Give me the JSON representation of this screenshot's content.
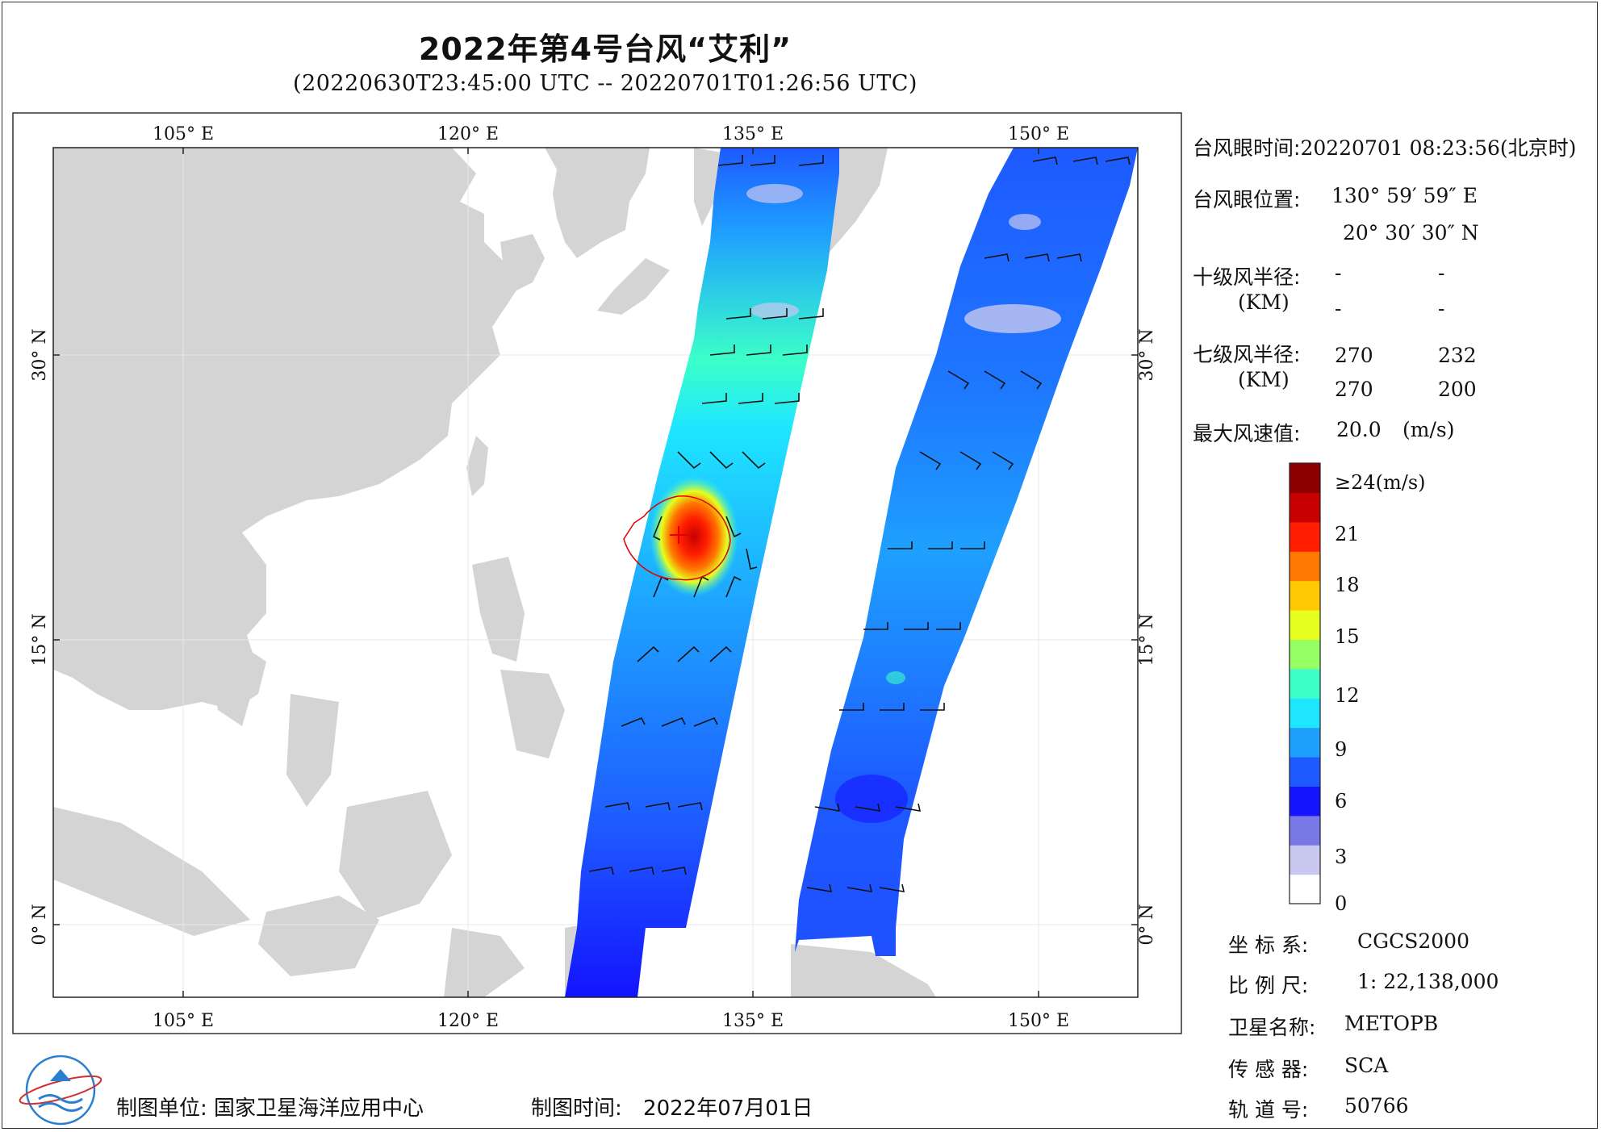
{
  "title": "2022年第4号台风“艾利”",
  "subtitle": "(20220630T23:45:00 UTC -- 20220701T01:26:56 UTC)",
  "axes": {
    "lon_labels": [
      "105° E",
      "120° E",
      "135° E",
      "150° E"
    ],
    "lat_labels": [
      "30° N",
      "15° N",
      "0° N"
    ]
  },
  "info": {
    "eye_time_label": "台风眼时间:",
    "eye_time_value": "20220701 08:23:56(北京时)",
    "eye_pos_label": "台风眼位置:",
    "eye_lon": "130° 59′ 59″ E",
    "eye_lat": "20° 30′ 30″ N",
    "r10_label": "十级风半径:",
    "r10_unit": "(KM)",
    "r10_values": [
      "-",
      "-",
      "-",
      "-"
    ],
    "r7_label": "七级风半径:",
    "r7_unit": "(KM)",
    "r7_values": [
      "270",
      "232",
      "270",
      "200"
    ],
    "max_wind_label": "最大风速值:",
    "max_wind_value": "20.0",
    "max_wind_unit": "(m/s)"
  },
  "colorbar": {
    "ticks": [
      "≥24(m/s)",
      "21",
      "18",
      "15",
      "12",
      "9",
      "6",
      "3",
      "0"
    ],
    "colors": [
      "#ffffff",
      "#c8c8f0",
      "#7878e6",
      "#1414ff",
      "#1e5aff",
      "#1ea0ff",
      "#1ee6ff",
      "#3cffc8",
      "#96ff64",
      "#e6ff1e",
      "#ffc800",
      "#ff7800",
      "#ff1e00",
      "#c80000",
      "#8c0000"
    ]
  },
  "meta": {
    "crs_label": "坐 标 系:",
    "crs_value": "CGCS2000",
    "scale_label": "比 例 尺:",
    "scale_value": "1: 22,138,000",
    "sat_label": "卫星名称:",
    "sat_value": "METOPB",
    "sensor_label": "传 感 器:",
    "sensor_value": "SCA",
    "orbit_label": "轨 道 号:",
    "orbit_value": "50766"
  },
  "footer": {
    "org_label": "制图单位:",
    "org_value": "国家卫星海洋应用中心",
    "date_label": "制图时间:",
    "date_value": "2022年07月01日"
  },
  "colors": {
    "land": "#d4d4d4",
    "ocean": "#ffffff",
    "typhoon_circle": "#e00000"
  }
}
